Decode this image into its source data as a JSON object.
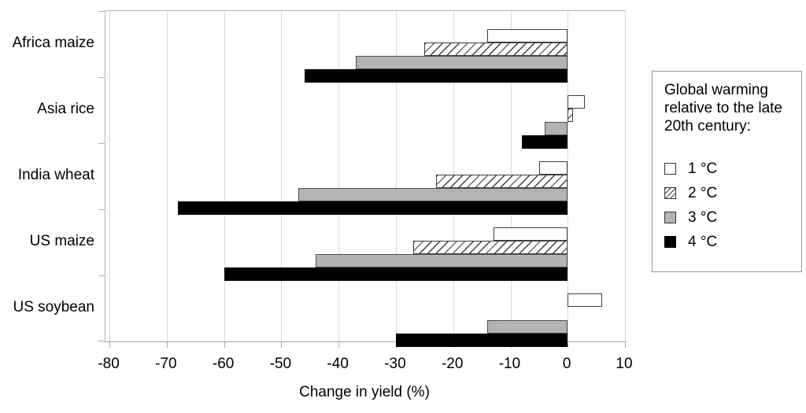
{
  "chart_data": {
    "type": "bar",
    "orientation": "horizontal",
    "title": "",
    "xlabel": "Change in yield (%)",
    "categories": [
      "Africa maize",
      "Asia rice",
      "India wheat",
      "US maize",
      "US soybean"
    ],
    "series": [
      {
        "name": "1 °C",
        "pattern": "white",
        "values": [
          -14,
          3,
          -5,
          -13,
          6
        ]
      },
      {
        "name": "2 °C",
        "pattern": "hatch",
        "values": [
          -25,
          1,
          -23,
          -27,
          0
        ]
      },
      {
        "name": "3 °C",
        "pattern": "gray",
        "values": [
          -37,
          -4,
          -47,
          -44,
          -14
        ]
      },
      {
        "name": "4 °C",
        "pattern": "black",
        "values": [
          -46,
          -8,
          -68,
          -60,
          -30
        ]
      }
    ],
    "xlim": [
      -80.7,
      10
    ],
    "xticks": [
      -80,
      -70,
      -60,
      -50,
      -40,
      -30,
      -20,
      -10,
      0,
      10
    ],
    "xtick_labels": [
      "-80",
      "-70",
      "-60",
      "-50",
      "-40",
      "-30",
      "-20",
      "-10",
      "0",
      "10"
    ],
    "grid": true,
    "legend_position": "right",
    "legend_title": "Global warming relative to the late 20th century:",
    "colors": {
      "bar_gray": "#b3b3b3",
      "bar_black": "#000000",
      "bar_outline": "#404040",
      "gridline": "#d9d9d9",
      "axis_line": "#a6a6a6",
      "text": "#000000"
    }
  }
}
